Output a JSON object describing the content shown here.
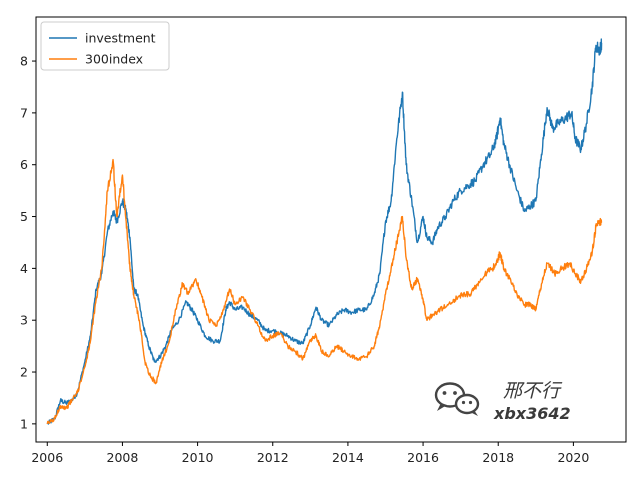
{
  "chart_data": {
    "type": "line",
    "title": "",
    "xlabel": "",
    "ylabel": "",
    "xlim": [
      2005.7,
      2021.4
    ],
    "ylim": [
      0.65,
      8.85
    ],
    "grid": false,
    "legend_position": "top-left",
    "x_ticks": [
      2006,
      2008,
      2010,
      2012,
      2014,
      2016,
      2018,
      2020
    ],
    "x_tick_labels": [
      "2006",
      "2008",
      "2010",
      "2012",
      "2014",
      "2016",
      "2018",
      "2020"
    ],
    "y_ticks": [
      1,
      2,
      3,
      4,
      5,
      6,
      7,
      8
    ],
    "y_tick_labels": [
      "1",
      "2",
      "3",
      "4",
      "5",
      "6",
      "7",
      "8"
    ],
    "series": [
      {
        "name": "investment",
        "color": "#1f77b4",
        "points": [
          [
            2006.0,
            1.0
          ],
          [
            2006.2,
            1.1
          ],
          [
            2006.35,
            1.45
          ],
          [
            2006.5,
            1.4
          ],
          [
            2006.65,
            1.45
          ],
          [
            2006.8,
            1.6
          ],
          [
            2007.0,
            2.2
          ],
          [
            2007.15,
            2.7
          ],
          [
            2007.3,
            3.6
          ],
          [
            2007.45,
            3.9
          ],
          [
            2007.6,
            4.7
          ],
          [
            2007.75,
            5.1
          ],
          [
            2007.85,
            4.9
          ],
          [
            2008.0,
            5.3
          ],
          [
            2008.1,
            5.1
          ],
          [
            2008.2,
            4.6
          ],
          [
            2008.3,
            3.6
          ],
          [
            2008.4,
            3.5
          ],
          [
            2008.55,
            2.9
          ],
          [
            2008.7,
            2.5
          ],
          [
            2008.85,
            2.2
          ],
          [
            2009.0,
            2.3
          ],
          [
            2009.15,
            2.5
          ],
          [
            2009.3,
            2.8
          ],
          [
            2009.5,
            3.0
          ],
          [
            2009.7,
            3.35
          ],
          [
            2009.85,
            3.2
          ],
          [
            2010.0,
            3.0
          ],
          [
            2010.2,
            2.7
          ],
          [
            2010.4,
            2.6
          ],
          [
            2010.6,
            2.6
          ],
          [
            2010.75,
            3.2
          ],
          [
            2010.85,
            3.35
          ],
          [
            2011.0,
            3.2
          ],
          [
            2011.2,
            3.25
          ],
          [
            2011.4,
            3.1
          ],
          [
            2011.6,
            3.0
          ],
          [
            2011.8,
            2.8
          ],
          [
            2012.0,
            2.8
          ],
          [
            2012.2,
            2.75
          ],
          [
            2012.4,
            2.7
          ],
          [
            2012.6,
            2.6
          ],
          [
            2012.8,
            2.55
          ],
          [
            2013.0,
            2.9
          ],
          [
            2013.15,
            3.25
          ],
          [
            2013.3,
            3.0
          ],
          [
            2013.5,
            2.9
          ],
          [
            2013.7,
            3.1
          ],
          [
            2013.9,
            3.2
          ],
          [
            2014.1,
            3.15
          ],
          [
            2014.3,
            3.2
          ],
          [
            2014.5,
            3.2
          ],
          [
            2014.7,
            3.5
          ],
          [
            2014.85,
            3.9
          ],
          [
            2015.0,
            4.9
          ],
          [
            2015.15,
            5.3
          ],
          [
            2015.3,
            6.5
          ],
          [
            2015.45,
            7.4
          ],
          [
            2015.55,
            6.0
          ],
          [
            2015.7,
            5.3
          ],
          [
            2015.85,
            4.5
          ],
          [
            2016.0,
            5.0
          ],
          [
            2016.1,
            4.6
          ],
          [
            2016.25,
            4.5
          ],
          [
            2016.4,
            4.8
          ],
          [
            2016.6,
            5.0
          ],
          [
            2016.8,
            5.3
          ],
          [
            2017.0,
            5.5
          ],
          [
            2017.2,
            5.6
          ],
          [
            2017.4,
            5.7
          ],
          [
            2017.6,
            6.0
          ],
          [
            2017.8,
            6.2
          ],
          [
            2017.95,
            6.5
          ],
          [
            2018.05,
            6.9
          ],
          [
            2018.15,
            6.4
          ],
          [
            2018.3,
            6.0
          ],
          [
            2018.5,
            5.5
          ],
          [
            2018.7,
            5.1
          ],
          [
            2018.85,
            5.2
          ],
          [
            2019.0,
            5.3
          ],
          [
            2019.15,
            6.2
          ],
          [
            2019.3,
            7.1
          ],
          [
            2019.45,
            6.7
          ],
          [
            2019.6,
            6.8
          ],
          [
            2019.8,
            6.9
          ],
          [
            2019.95,
            7.0
          ],
          [
            2020.05,
            6.5
          ],
          [
            2020.2,
            6.3
          ],
          [
            2020.35,
            6.8
          ],
          [
            2020.5,
            7.5
          ],
          [
            2020.6,
            8.3
          ],
          [
            2020.7,
            8.2
          ],
          [
            2020.75,
            8.35
          ]
        ]
      },
      {
        "name": "300index",
        "color": "#ff7f0e",
        "points": [
          [
            2006.0,
            1.0
          ],
          [
            2006.2,
            1.1
          ],
          [
            2006.35,
            1.35
          ],
          [
            2006.5,
            1.3
          ],
          [
            2006.65,
            1.45
          ],
          [
            2006.8,
            1.6
          ],
          [
            2007.0,
            2.1
          ],
          [
            2007.15,
            2.6
          ],
          [
            2007.3,
            3.4
          ],
          [
            2007.45,
            4.0
          ],
          [
            2007.6,
            5.5
          ],
          [
            2007.75,
            6.1
          ],
          [
            2007.85,
            5.0
          ],
          [
            2008.0,
            5.8
          ],
          [
            2008.1,
            4.9
          ],
          [
            2008.2,
            4.0
          ],
          [
            2008.3,
            3.5
          ],
          [
            2008.45,
            3.0
          ],
          [
            2008.6,
            2.2
          ],
          [
            2008.75,
            1.9
          ],
          [
            2008.9,
            1.8
          ],
          [
            2009.05,
            2.2
          ],
          [
            2009.25,
            2.6
          ],
          [
            2009.45,
            3.3
          ],
          [
            2009.6,
            3.7
          ],
          [
            2009.75,
            3.5
          ],
          [
            2009.95,
            3.8
          ],
          [
            2010.1,
            3.5
          ],
          [
            2010.3,
            3.0
          ],
          [
            2010.5,
            2.9
          ],
          [
            2010.7,
            3.2
          ],
          [
            2010.85,
            3.6
          ],
          [
            2011.0,
            3.3
          ],
          [
            2011.2,
            3.45
          ],
          [
            2011.4,
            3.2
          ],
          [
            2011.6,
            2.9
          ],
          [
            2011.8,
            2.6
          ],
          [
            2012.0,
            2.7
          ],
          [
            2012.2,
            2.75
          ],
          [
            2012.4,
            2.5
          ],
          [
            2012.6,
            2.4
          ],
          [
            2012.8,
            2.25
          ],
          [
            2013.0,
            2.6
          ],
          [
            2013.15,
            2.7
          ],
          [
            2013.3,
            2.4
          ],
          [
            2013.5,
            2.3
          ],
          [
            2013.7,
            2.5
          ],
          [
            2013.9,
            2.4
          ],
          [
            2014.1,
            2.3
          ],
          [
            2014.3,
            2.25
          ],
          [
            2014.5,
            2.3
          ],
          [
            2014.7,
            2.5
          ],
          [
            2014.85,
            2.9
          ],
          [
            2015.0,
            3.5
          ],
          [
            2015.15,
            4.0
          ],
          [
            2015.3,
            4.5
          ],
          [
            2015.45,
            5.0
          ],
          [
            2015.55,
            4.2
          ],
          [
            2015.7,
            3.6
          ],
          [
            2015.85,
            3.8
          ],
          [
            2016.0,
            3.4
          ],
          [
            2016.1,
            3.0
          ],
          [
            2016.25,
            3.1
          ],
          [
            2016.45,
            3.2
          ],
          [
            2016.65,
            3.3
          ],
          [
            2016.85,
            3.4
          ],
          [
            2017.05,
            3.5
          ],
          [
            2017.25,
            3.5
          ],
          [
            2017.45,
            3.7
          ],
          [
            2017.65,
            3.9
          ],
          [
            2017.85,
            4.0
          ],
          [
            2017.95,
            4.1
          ],
          [
            2018.05,
            4.3
          ],
          [
            2018.15,
            4.0
          ],
          [
            2018.3,
            3.8
          ],
          [
            2018.5,
            3.5
          ],
          [
            2018.7,
            3.3
          ],
          [
            2018.85,
            3.3
          ],
          [
            2019.0,
            3.2
          ],
          [
            2019.15,
            3.7
          ],
          [
            2019.3,
            4.1
          ],
          [
            2019.5,
            3.9
          ],
          [
            2019.7,
            4.0
          ],
          [
            2019.9,
            4.1
          ],
          [
            2020.05,
            3.9
          ],
          [
            2020.2,
            3.75
          ],
          [
            2020.35,
            4.0
          ],
          [
            2020.5,
            4.3
          ],
          [
            2020.6,
            4.8
          ],
          [
            2020.7,
            4.9
          ],
          [
            2020.75,
            4.9
          ]
        ]
      }
    ]
  },
  "watermark": {
    "cn_text": "邢不行",
    "id_text": "xbx3642",
    "icon": "wechat-icon"
  }
}
